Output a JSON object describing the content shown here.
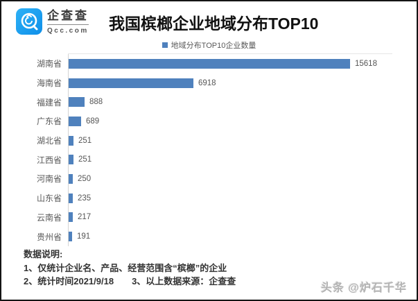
{
  "header": {
    "brand_cn": "企查查",
    "brand_domain": "Qcc.com",
    "title": "我国槟榔企业地域分布TOP10"
  },
  "chart_data": {
    "type": "bar",
    "orientation": "horizontal",
    "title": "我国槟榔企业地域分布TOP10",
    "legend": "地域分布TOP10企业数量",
    "legend_position": "top-center",
    "categories": [
      "湖南省",
      "海南省",
      "福建省",
      "广东省",
      "湖北省",
      "江西省",
      "河南省",
      "山东省",
      "云南省",
      "贵州省"
    ],
    "values": [
      15618,
      6918,
      888,
      689,
      251,
      251,
      250,
      235,
      217,
      191
    ],
    "xlim": [
      0,
      15618
    ],
    "grid": false,
    "bar_color": "#4f81bd",
    "value_labels": [
      "15618",
      "6918",
      "888",
      "689",
      "251",
      "251",
      "250",
      "235",
      "217",
      "191"
    ]
  },
  "notes": {
    "heading": "数据说明:",
    "line1": "1、仅统计企业名、产品、经营范围含“槟榔”的企业",
    "line2_left": "2、统计时间2021/9/18",
    "line2_right": "3、以上数据来源：企查查"
  },
  "watermark": "头条 @炉石千华",
  "colors": {
    "bar": "#4f81bd",
    "logo_blue": "#1a9ff2",
    "border": "#141414"
  }
}
